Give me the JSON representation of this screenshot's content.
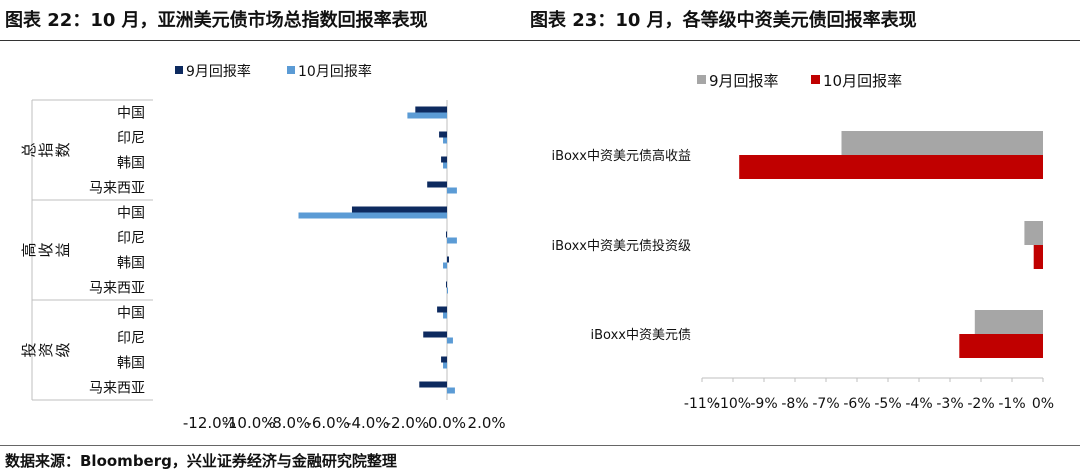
{
  "titles": {
    "left": "图表 22：10 月，亚洲美元债市场总指数回报率表现",
    "right": "图表 23：10 月，各等级中资美元债回报率表现"
  },
  "source": "数据来源：Bloomberg，兴业证券经济与金融研究院整理",
  "chart_data": [
    {
      "type": "bar",
      "orientation": "horizontal",
      "groups": [
        {
          "name": "总指数",
          "categories": [
            "中国",
            "印尼",
            "韩国",
            "马来西亚"
          ]
        },
        {
          "name": "高收益",
          "categories": [
            "中国",
            "印尼",
            "韩国",
            "马来西亚"
          ]
        },
        {
          "name": "投资级",
          "categories": [
            "中国",
            "印尼",
            "韩国",
            "马来西亚"
          ]
        }
      ],
      "series": [
        {
          "name": "9月回报率",
          "color": "#0d2a5f",
          "values": [
            -1.6,
            -0.4,
            -0.3,
            -1.0,
            -4.8,
            -0.05,
            0.1,
            -0.05,
            -0.5,
            -1.2,
            -0.3,
            -1.4
          ]
        },
        {
          "name": "10月回报率",
          "color": "#5b9bd5",
          "values": [
            -2.0,
            -0.2,
            -0.2,
            0.5,
            -7.5,
            0.5,
            -0.2,
            0.05,
            -0.2,
            0.3,
            -0.2,
            0.4
          ]
        }
      ],
      "xlim": [
        -12,
        2
      ],
      "xticks": [
        "-12.0%",
        "-10.0%",
        "-8.0%",
        "-6.0%",
        "-4.0%",
        "-2.0%",
        "0.0%",
        "2.0%"
      ],
      "xtick_values": [
        -12,
        -10,
        -8,
        -6,
        -4,
        -2,
        0,
        2
      ],
      "legend": "top-left"
    },
    {
      "type": "bar",
      "orientation": "horizontal",
      "categories": [
        "iBoxx中资美元债高收益",
        "iBoxx中资美元债投资级",
        "iBoxx中资美元债"
      ],
      "series": [
        {
          "name": "9月回报率",
          "color": "#a6a6a6",
          "values": [
            -6.5,
            -0.6,
            -2.2
          ]
        },
        {
          "name": "10月回报率",
          "color": "#c00000",
          "values": [
            -9.8,
            -0.3,
            -2.7
          ]
        }
      ],
      "xlim": [
        -11,
        0
      ],
      "xticks": [
        "-11%",
        "-10%",
        "-9%",
        "-8%",
        "-7%",
        "-6%",
        "-5%",
        "-4%",
        "-3%",
        "-2%",
        "-1%",
        "0%"
      ],
      "xtick_values": [
        -11,
        -10,
        -9,
        -8,
        -7,
        -6,
        -5,
        -4,
        -3,
        -2,
        -1,
        0
      ],
      "legend": "top-left"
    }
  ]
}
